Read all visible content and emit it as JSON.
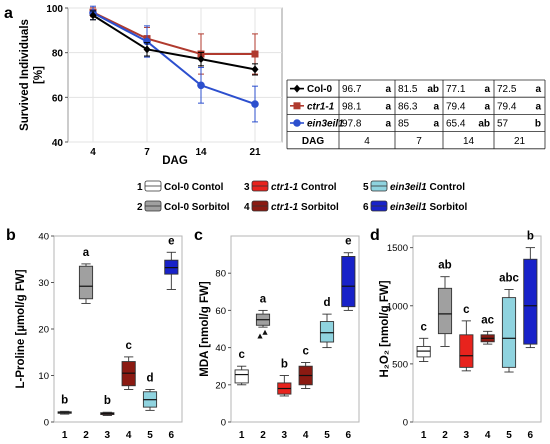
{
  "chart_data": [
    {
      "panel": "a",
      "type": "line",
      "ylabel": "Survived Individuals",
      "ylabel2": "[%]",
      "xlabel": "DAG",
      "x": [
        4,
        7,
        14,
        21
      ],
      "ylim": [
        40,
        100
      ],
      "yticks": [
        40,
        60,
        80,
        100
      ],
      "series": [
        {
          "name": "Col-0",
          "italic": false,
          "color": "#000000",
          "marker": "diamond",
          "values": [
            96.7,
            81.5,
            77.1,
            72.5
          ],
          "errors": [
            2,
            3,
            3,
            2.5
          ],
          "sig": [
            "a",
            "ab",
            "a",
            "a"
          ]
        },
        {
          "name": "ctr1-1",
          "italic": true,
          "color": "#b03a2e",
          "marker": "square",
          "values": [
            98.1,
            86.3,
            79.4,
            79.4
          ],
          "errors": [
            2,
            5,
            9,
            9
          ],
          "sig": [
            "a",
            "a",
            "a",
            "a"
          ]
        },
        {
          "name": "ein3eil1",
          "italic": true,
          "color": "#2c4fce",
          "marker": "circle",
          "values": [
            97.8,
            85,
            65.4,
            57
          ],
          "errors": [
            3,
            7,
            8,
            8
          ],
          "sig": [
            "a",
            "a",
            "ab",
            "b"
          ]
        }
      ],
      "table_header": "DAG"
    },
    {
      "panel": "b",
      "type": "box",
      "ylabel": "L-Proline [µmol/g FW]",
      "ylim": [
        0,
        40
      ],
      "yticks": [
        0,
        10,
        20,
        30,
        40
      ],
      "categories": [
        "1",
        "2",
        "3",
        "4",
        "5",
        "6"
      ],
      "boxes": [
        {
          "min": 1.7,
          "q1": 1.9,
          "median": 2.0,
          "q3": 2.2,
          "max": 2.3,
          "sig": "b"
        },
        {
          "min": 25.5,
          "q1": 26.5,
          "median": 29.2,
          "q3": 33.5,
          "max": 34,
          "sig": "a"
        },
        {
          "min": 1.4,
          "q1": 1.6,
          "median": 1.8,
          "q3": 2.0,
          "max": 2.1,
          "sig": "b"
        },
        {
          "min": 7,
          "q1": 7.8,
          "median": 10.5,
          "q3": 13,
          "max": 14,
          "sig": "c"
        },
        {
          "min": 2.5,
          "q1": 3.2,
          "median": 4.8,
          "q3": 6.5,
          "max": 7,
          "sig": "d"
        },
        {
          "min": 28.5,
          "q1": 31.8,
          "median": 33.2,
          "q3": 34.8,
          "max": 36.5,
          "sig": "e"
        }
      ]
    },
    {
      "panel": "c",
      "type": "box",
      "ylabel": "MDA [nmol/g FW]",
      "ylim": [
        0,
        100
      ],
      "yticks": [
        0,
        20,
        40,
        60,
        80
      ],
      "categories": [
        "1",
        "2",
        "3",
        "4",
        "5",
        "6"
      ],
      "boxes": [
        {
          "min": 20,
          "q1": 21,
          "median": 25.5,
          "q3": 28,
          "max": 30,
          "sig": "c"
        },
        {
          "min": 51,
          "q1": 52,
          "median": 55,
          "q3": 58,
          "max": 60,
          "sig": "a",
          "outliers": [
            46,
            48
          ]
        },
        {
          "min": 14,
          "q1": 15,
          "median": 18,
          "q3": 21,
          "max": 25,
          "sig": "b"
        },
        {
          "min": 18,
          "q1": 20,
          "median": 25,
          "q3": 30,
          "max": 32,
          "sig": "c"
        },
        {
          "min": 40,
          "q1": 43,
          "median": 48,
          "q3": 54,
          "max": 58,
          "sig": "d"
        },
        {
          "min": 60,
          "q1": 62,
          "median": 73,
          "q3": 89,
          "max": 91,
          "sig": "e"
        }
      ]
    },
    {
      "panel": "d",
      "type": "box",
      "ylabel": "H₂O₂ [nmol/g FW]",
      "ylim": [
        0,
        1600
      ],
      "yticks": [
        0,
        500,
        1000,
        1500
      ],
      "categories": [
        "1",
        "2",
        "3",
        "4",
        "5",
        "6"
      ],
      "boxes": [
        {
          "min": 520,
          "q1": 560,
          "median": 610,
          "q3": 650,
          "max": 720,
          "sig": "c"
        },
        {
          "min": 650,
          "q1": 760,
          "median": 930,
          "q3": 1150,
          "max": 1250,
          "sig": "ab"
        },
        {
          "min": 440,
          "q1": 470,
          "median": 570,
          "q3": 750,
          "max": 870,
          "sig": "c"
        },
        {
          "min": 670,
          "q1": 690,
          "median": 720,
          "q3": 750,
          "max": 780,
          "sig": "ac"
        },
        {
          "min": 430,
          "q1": 470,
          "median": 720,
          "q3": 1070,
          "max": 1140,
          "sig": "abc"
        },
        {
          "min": 640,
          "q1": 670,
          "median": 1000,
          "q3": 1400,
          "max": 1500,
          "sig": "b"
        }
      ]
    }
  ],
  "legend": [
    {
      "num": "1",
      "genotype": "Col-0",
      "italic": false,
      "treatment": "Contol",
      "fill": "#ffffff"
    },
    {
      "num": "2",
      "genotype": "Col-0",
      "italic": false,
      "treatment": "Sorbitol",
      "fill": "#a0a0a0"
    },
    {
      "num": "3",
      "genotype": "ctr1-1",
      "italic": true,
      "treatment": "Control",
      "fill": "#e8231d"
    },
    {
      "num": "4",
      "genotype": "ctr1-1",
      "italic": true,
      "treatment": "Sorbitol",
      "fill": "#8b1a12"
    },
    {
      "num": "5",
      "genotype": "ein3eil1",
      "italic": true,
      "treatment": "Control",
      "fill": "#8fd3df"
    },
    {
      "num": "6",
      "genotype": "ein3eil1",
      "italic": true,
      "treatment": "Sorbitol",
      "fill": "#1822c9"
    }
  ]
}
